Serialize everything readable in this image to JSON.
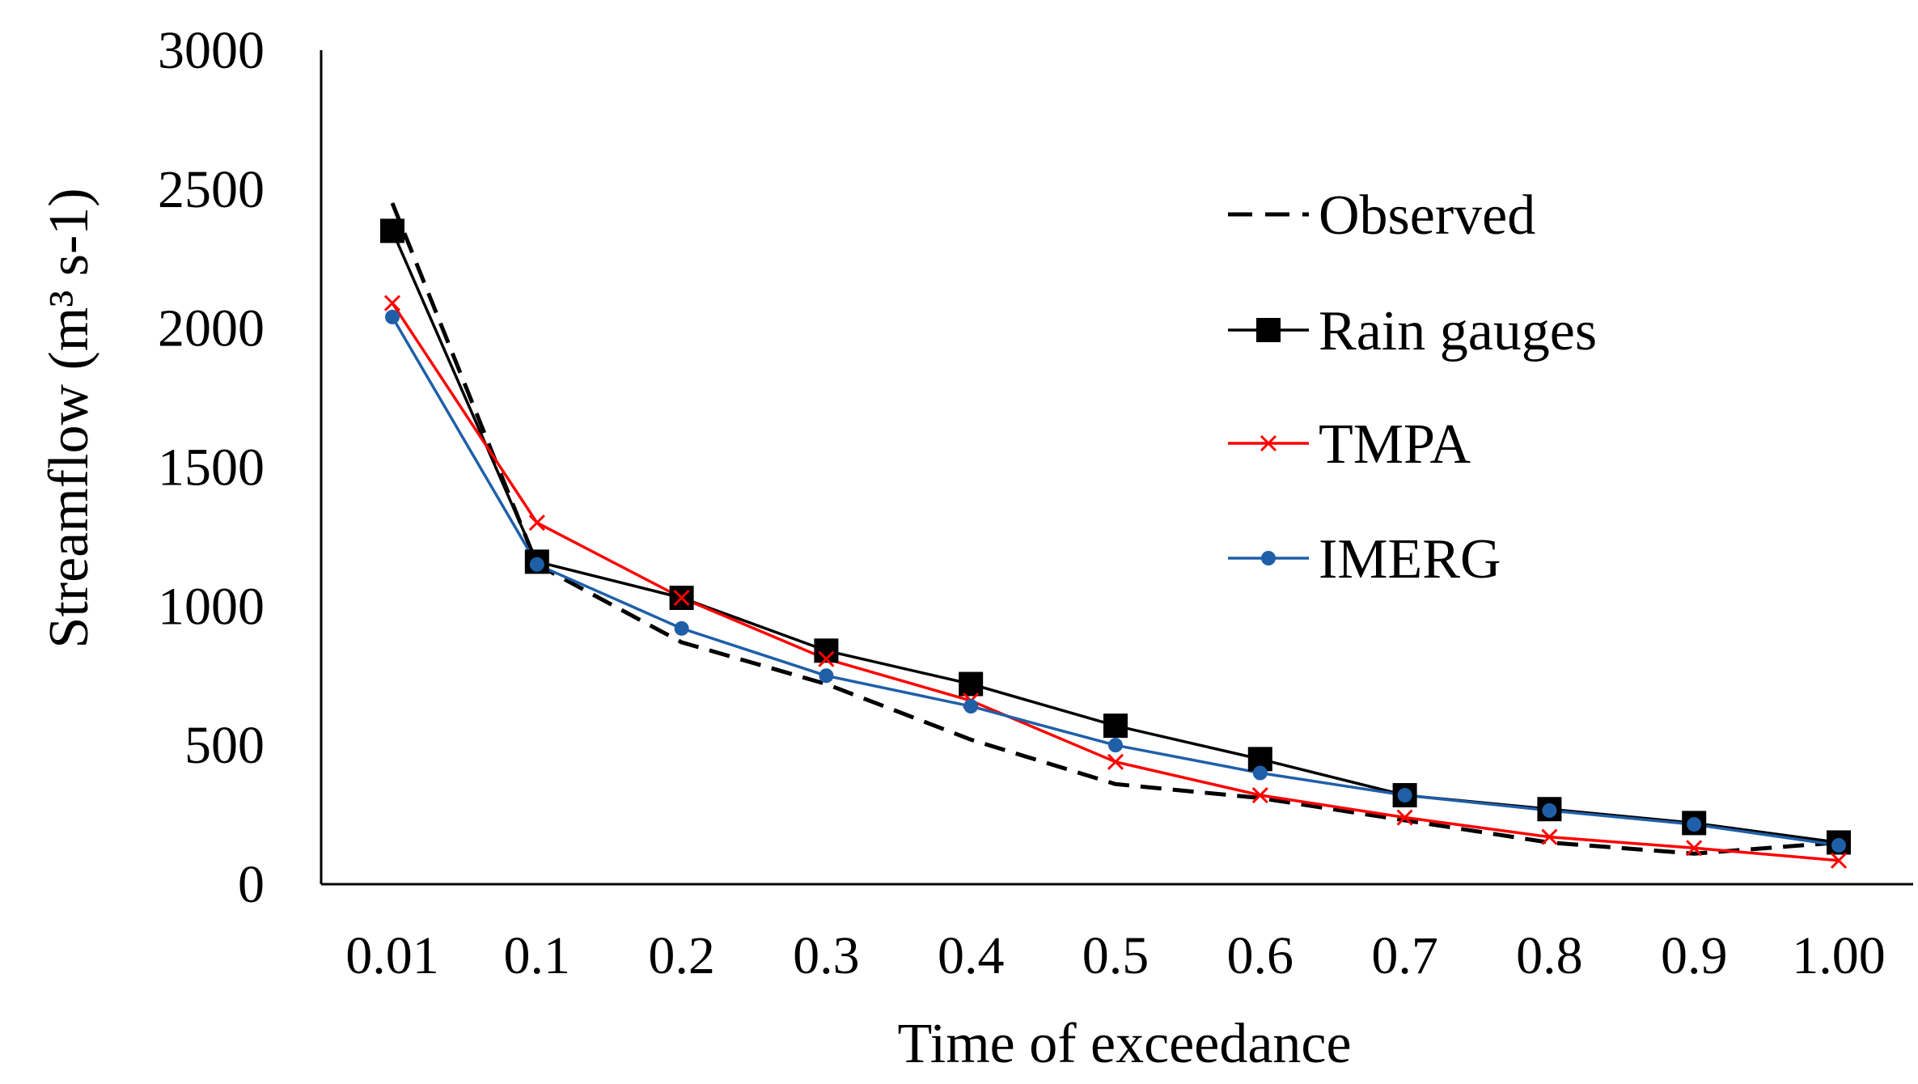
{
  "chart_data": {
    "type": "line",
    "title": "",
    "xlabel": "Time of exceedance",
    "ylabel": "Streamflow (m³ s-1)",
    "ylim": [
      0,
      3000
    ],
    "yticks": [
      "0",
      "500",
      "1000",
      "1500",
      "2000",
      "2500",
      "3000"
    ],
    "categories": [
      "0.01",
      "0.1",
      "0.2",
      "0.3",
      "0.4",
      "0.5",
      "0.6",
      "0.7",
      "0.8",
      "0.9",
      "1.00"
    ],
    "grid": false,
    "legend_position": "top-right",
    "series": [
      {
        "name": "Observed",
        "color": "#000000",
        "style": "dashed",
        "marker": "none",
        "values": [
          2450,
          1150,
          870,
          720,
          520,
          360,
          310,
          230,
          150,
          110,
          150
        ]
      },
      {
        "name": "Rain gauges",
        "color": "#000000",
        "style": "solid",
        "marker": "square",
        "values": [
          2350,
          1160,
          1030,
          840,
          720,
          570,
          450,
          320,
          270,
          220,
          150
        ]
      },
      {
        "name": "TMPA",
        "color": "#ff0000",
        "style": "solid",
        "marker": "x",
        "values": [
          2090,
          1300,
          1030,
          810,
          660,
          440,
          320,
          240,
          170,
          130,
          85
        ]
      },
      {
        "name": "IMERG",
        "color": "#1f5fa8",
        "style": "solid",
        "marker": "circle",
        "values": [
          2040,
          1150,
          920,
          750,
          640,
          500,
          400,
          320,
          265,
          215,
          140
        ]
      }
    ]
  }
}
